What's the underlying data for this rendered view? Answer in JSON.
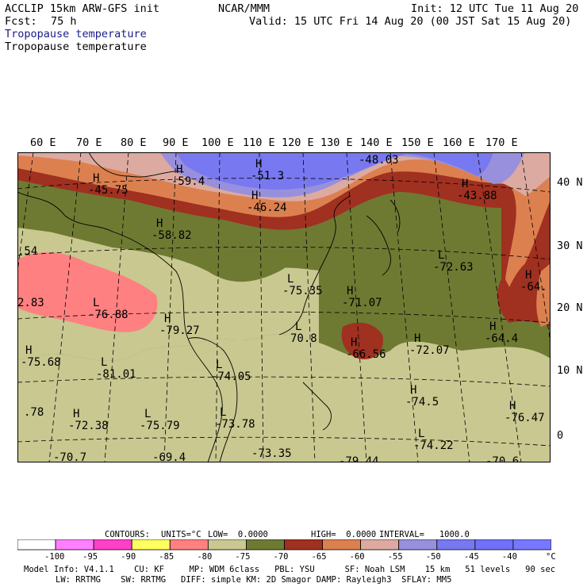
{
  "header": {
    "model": "ACCLIP 15km ARW-GFS init",
    "org": "NCAR/MMM",
    "init": "Init: 12 UTC Tue 11 Aug 20",
    "fcst_label": "Fcst:",
    "fcst_value": "75 h",
    "valid": "Valid: 15 UTC Fri 14 Aug 20 (00 JST Sat 15 Aug 20)",
    "field_title_1": "Tropopause temperature",
    "field_title_2": "Tropopause temperature"
  },
  "map": {
    "lon_labels": [
      "60 E",
      "70 E",
      "80 E",
      "90 E",
      "100 E",
      "110 E",
      "120 E",
      "130 E",
      "140 E",
      "150 E",
      "160 E",
      "170 E"
    ],
    "lat_labels": [
      "40 N",
      "30 N",
      "20 N",
      "10 N",
      "0"
    ],
    "pressure_labels": [
      {
        "h": "H",
        "v": "-45.75"
      },
      {
        "h": "H",
        "v": "-59.4"
      },
      {
        "h": "H",
        "v": "-51.3"
      },
      {
        "h": "",
        "v": "-48.03"
      },
      {
        "h": "H",
        "v": "-46.24"
      },
      {
        "h": "H",
        "v": "-43.88"
      },
      {
        "h": "H",
        "v": "-58.82"
      },
      {
        "h": "",
        "v": ".54"
      },
      {
        "h": "L",
        "v": "-72.63"
      },
      {
        "h": "L",
        "v": "-75.35"
      },
      {
        "h": "H",
        "v": "-64."
      },
      {
        "h": "",
        "v": "2.83"
      },
      {
        "h": "L",
        "v": "-76.88"
      },
      {
        "h": "H",
        "v": "-71.07"
      },
      {
        "h": "H",
        "v": "-79.27"
      },
      {
        "h": "H",
        "v": "-64.4"
      },
      {
        "h": "L",
        "v": "70.8"
      },
      {
        "h": "H",
        "v": "-66.56"
      },
      {
        "h": "H",
        "v": "-72.07"
      },
      {
        "h": "H",
        "v": "-75.68"
      },
      {
        "h": "L",
        "v": "-81.01"
      },
      {
        "h": "L",
        "v": "-74.05"
      },
      {
        "h": "H",
        "v": "-74.5"
      },
      {
        "h": "H",
        "v": "-76.47"
      },
      {
        "h": "",
        "v": ".78"
      },
      {
        "h": "H",
        "v": "-72.38"
      },
      {
        "h": "L",
        "v": "-75.79"
      },
      {
        "h": "L",
        "v": "-73.78"
      },
      {
        "h": "L",
        "v": "-74.22"
      },
      {
        "h": "",
        "v": "-70.7"
      },
      {
        "h": "",
        "v": "-69.4"
      },
      {
        "h": "",
        "v": "-73.35"
      },
      {
        "h": "",
        "v": "-79.44"
      },
      {
        "h": "",
        "v": "-70.6"
      }
    ]
  },
  "contours_info": {
    "contours": "CONTOURS:",
    "units": "UNITS=°C",
    "low": "LOW=  0.0000",
    "high": "HIGH=  0.0000",
    "interval": "INTERVAL=   1000.0"
  },
  "colorbar": {
    "colors": [
      "#ffffff",
      "#ff80ff",
      "#ff40c8",
      "#ffff60",
      "#ff8080",
      "#c8c890",
      "#6e7a32",
      "#a03020",
      "#dc8050",
      "#dcaaa0",
      "#9890dc",
      "#7878f0",
      "#7070f8",
      "#7878ff"
    ],
    "labels": [
      "-100",
      "-95",
      "-90",
      "-85",
      "-80",
      "-75",
      "-70",
      "-65",
      "-60",
      "-55",
      "-50",
      "-45",
      "-40"
    ],
    "unit": "°C"
  },
  "footer": {
    "line1": "Model Info: V4.1.1    CU: KF     MP: WDM 6class   PBL: YSU      SF: Noah LSM    15 km   51 levels   90 sec",
    "line2": "LW: RRTMG    SW: RRTMG   DIFF: simple KM: 2D Smagor DAMP: Rayleigh3  SFLAY: MM5"
  }
}
